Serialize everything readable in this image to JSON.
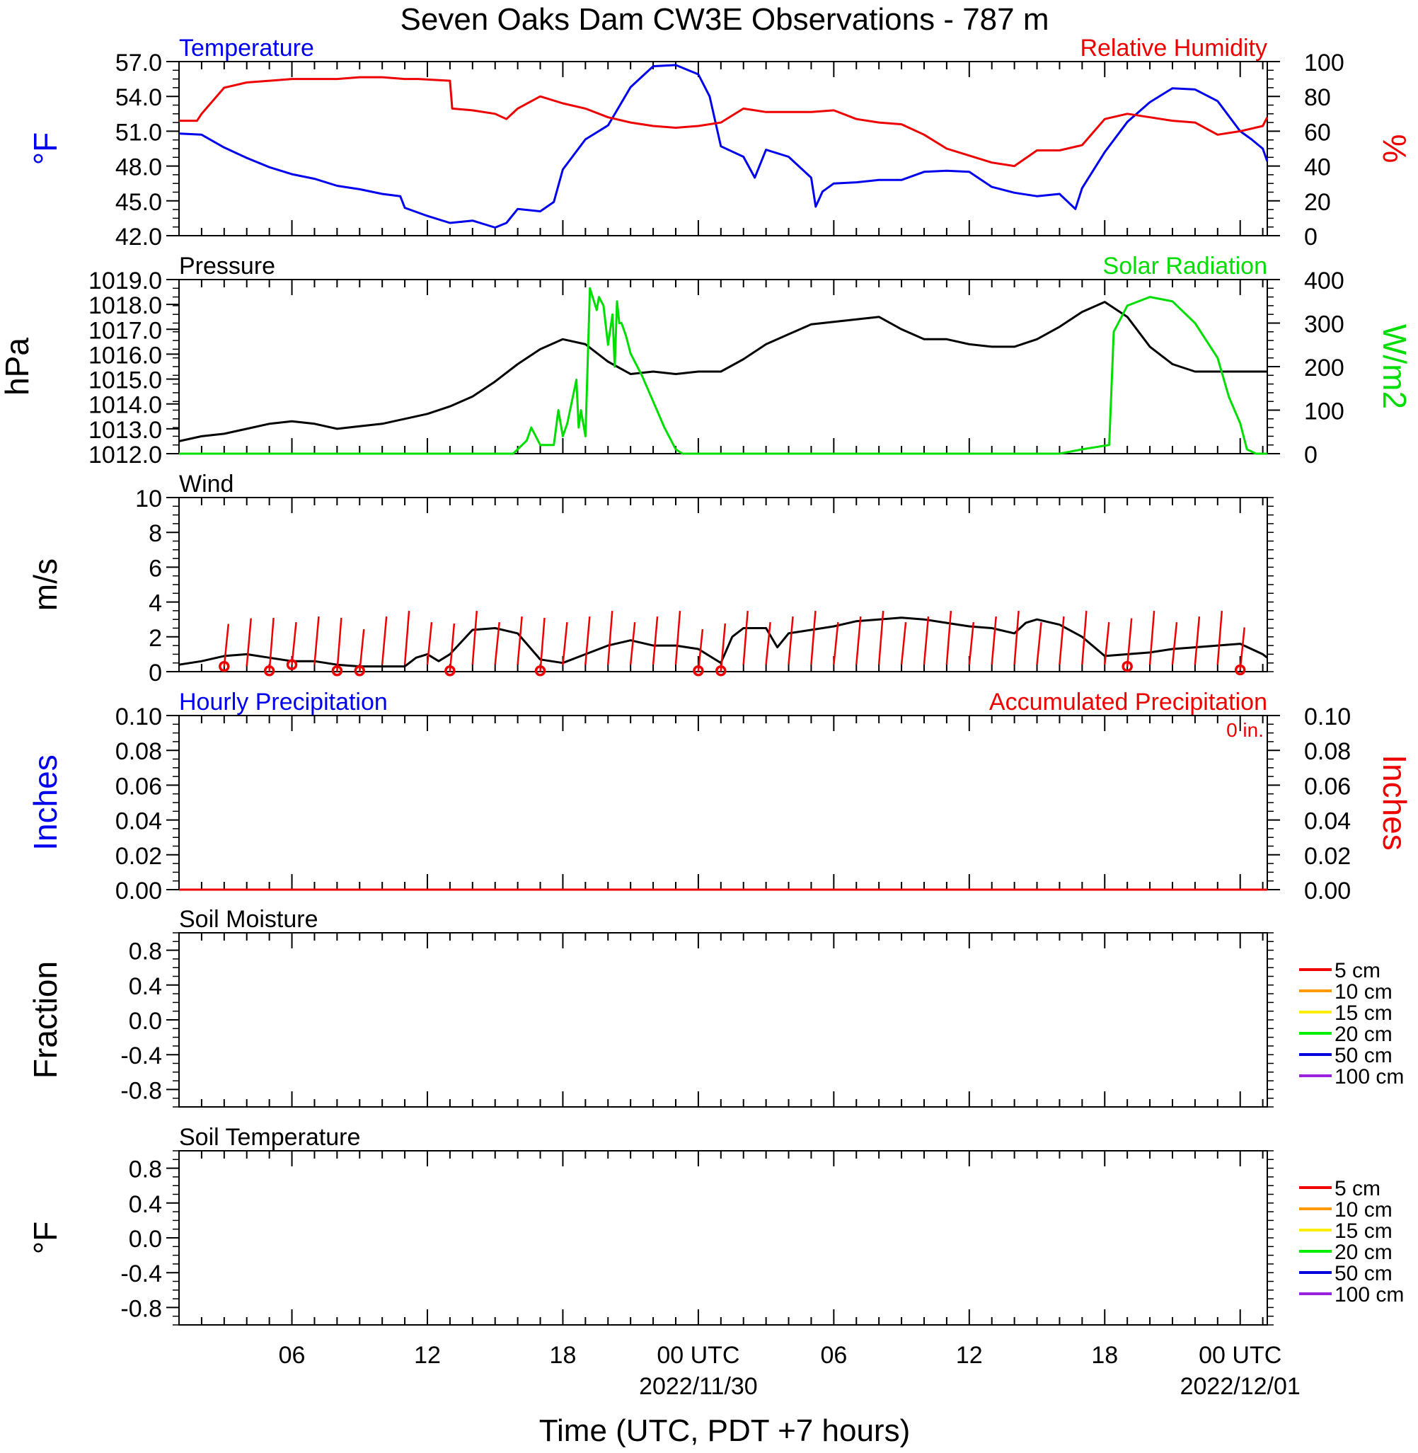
{
  "title": "Seven Oaks Dam CW3E Observations - 787 m",
  "x_axis": {
    "label": "Time (UTC, PDT +7 hours)",
    "range_hours": [
      1,
      49.2
    ],
    "ticks": [
      {
        "h": 6,
        "label": "06",
        "date": ""
      },
      {
        "h": 12,
        "label": "12",
        "date": ""
      },
      {
        "h": 18,
        "label": "18",
        "date": ""
      },
      {
        "h": 24,
        "label": "00 UTC",
        "date": "2022/11/30"
      },
      {
        "h": 30,
        "label": "06",
        "date": ""
      },
      {
        "h": 36,
        "label": "12",
        "date": ""
      },
      {
        "h": 42,
        "label": "18",
        "date": ""
      },
      {
        "h": 48,
        "label": "00 UTC",
        "date": "2022/12/01"
      }
    ]
  },
  "chart_data": [
    {
      "type": "line",
      "title_left": "Temperature",
      "title_right": "Relative Humidity",
      "ylabel_left": "°F",
      "ylabel_right": "%",
      "ylim_left": [
        42,
        57
      ],
      "ylim_right": [
        0,
        100
      ],
      "yticks_left": [
        "42.0",
        "45.0",
        "48.0",
        "51.0",
        "54.0",
        "57.0"
      ],
      "yticks_right": [
        "0",
        "20",
        "40",
        "60",
        "80",
        "100"
      ],
      "colors": {
        "left": "#0000ee",
        "right": "#ee0000"
      },
      "series": [
        {
          "name": "Temperature",
          "axis": "left",
          "color": "#0000ee",
          "x": [
            1,
            2,
            3,
            4,
            5,
            6,
            7,
            8,
            9,
            10,
            10.8,
            11,
            12,
            13,
            14,
            15,
            15.5,
            16,
            17,
            17.6,
            18,
            19,
            20,
            21,
            22,
            23,
            24,
            24.5,
            25,
            26,
            26.5,
            27,
            28,
            29,
            29.2,
            29.5,
            30,
            31,
            32,
            33,
            34,
            35,
            36,
            37,
            38,
            39,
            40,
            40.7,
            41,
            42,
            43,
            44,
            45,
            46,
            47,
            48,
            48.5,
            49,
            49.2
          ],
          "y": [
            50.8,
            50.7,
            49.6,
            48.7,
            47.9,
            47.3,
            46.9,
            46.3,
            46.0,
            45.6,
            45.4,
            44.4,
            43.7,
            43.1,
            43.3,
            42.7,
            43.1,
            44.3,
            44.1,
            44.9,
            47.7,
            50.3,
            51.5,
            54.8,
            56.6,
            56.7,
            55.9,
            54.0,
            49.7,
            48.8,
            47.0,
            49.4,
            48.8,
            47.0,
            44.5,
            45.8,
            46.5,
            46.6,
            46.8,
            46.8,
            47.5,
            47.6,
            47.5,
            46.2,
            45.7,
            45.4,
            45.6,
            44.3,
            46.1,
            49.2,
            51.8,
            53.5,
            54.7,
            54.6,
            53.6,
            51.0,
            50.3,
            49.5,
            48.4
          ]
        },
        {
          "name": "Relative Humidity",
          "axis": "right",
          "color": "#ee0000",
          "x": [
            1,
            1.8,
            2,
            3,
            4,
            5,
            6,
            7,
            8,
            9,
            10,
            11,
            11.6,
            13,
            13.1,
            14,
            15,
            15.5,
            16,
            17,
            18,
            19,
            20,
            21,
            22,
            23,
            24,
            25,
            26,
            27,
            28,
            29,
            30,
            31,
            32,
            33,
            34,
            35,
            36,
            37,
            38,
            39,
            40,
            41,
            42,
            43,
            44,
            45,
            46,
            47,
            48,
            49,
            49.2
          ],
          "y": [
            66,
            66,
            70,
            85,
            88,
            89,
            90,
            90,
            90,
            91,
            91,
            90,
            90,
            89,
            73,
            72,
            70,
            67,
            73,
            80,
            76,
            73,
            68,
            65,
            63,
            62,
            63,
            65,
            73,
            71,
            71,
            71,
            72,
            67,
            65,
            64,
            58,
            50,
            46,
            42,
            40,
            49,
            49,
            52,
            67,
            70,
            68,
            66,
            65,
            58,
            60,
            63,
            68
          ]
        }
      ]
    },
    {
      "type": "line",
      "title_left": "Pressure",
      "title_right": "Solar Radiation",
      "ylabel_left": "hPa",
      "ylabel_right": "W/m2",
      "ylim_left": [
        1012,
        1019
      ],
      "ylim_right": [
        0,
        400
      ],
      "yticks_left": [
        "1012.0",
        "1013.0",
        "1014.0",
        "1015.0",
        "1016.0",
        "1017.0",
        "1018.0",
        "1019.0"
      ],
      "yticks_right": [
        "0",
        "100",
        "200",
        "300",
        "400"
      ],
      "colors": {
        "left": "#000000",
        "right": "#00dd00"
      },
      "series": [
        {
          "name": "Pressure",
          "axis": "left",
          "color": "#000000",
          "x": [
            1,
            2,
            3,
            4,
            5,
            6,
            7,
            8,
            9,
            10,
            11,
            12,
            13,
            14,
            15,
            16,
            17,
            18,
            19,
            20,
            21,
            22,
            23,
            24,
            25,
            26,
            27,
            28,
            29,
            30,
            31,
            32,
            33,
            34,
            35,
            36,
            37,
            38,
            39,
            40,
            41,
            42,
            43,
            44,
            45,
            46,
            47,
            48,
            49.2
          ],
          "y": [
            1012.5,
            1012.7,
            1012.8,
            1013.0,
            1013.2,
            1013.3,
            1013.2,
            1013.0,
            1013.1,
            1013.2,
            1013.4,
            1013.6,
            1013.9,
            1014.3,
            1014.9,
            1015.6,
            1016.2,
            1016.6,
            1016.4,
            1015.7,
            1015.2,
            1015.3,
            1015.2,
            1015.3,
            1015.3,
            1015.8,
            1016.4,
            1016.8,
            1017.2,
            1017.3,
            1017.4,
            1017.5,
            1017.0,
            1016.6,
            1016.6,
            1016.4,
            1016.3,
            1016.3,
            1016.6,
            1017.1,
            1017.7,
            1018.1,
            1017.5,
            1016.3,
            1015.6,
            1015.3,
            1015.3,
            1015.3,
            1015.3
          ]
        },
        {
          "name": "Solar Radiation",
          "axis": "right",
          "color": "#00dd00",
          "x": [
            1,
            15.8,
            16.4,
            16.6,
            16.8,
            17,
            17.6,
            17.8,
            18,
            18.2,
            18.6,
            18.7,
            18.8,
            19.0,
            19.2,
            19.5,
            19.6,
            19.8,
            20,
            20.2,
            20.3,
            20.4,
            20.5,
            20.6,
            20.8,
            21,
            21.5,
            22,
            22.5,
            23,
            23.3,
            23.5,
            24,
            24.1,
            30,
            36,
            40,
            41,
            42.2,
            42.4,
            43,
            44,
            45,
            46,
            47,
            47.5,
            48,
            48.3,
            48.7,
            49.2
          ],
          "y": [
            0,
            0,
            30,
            60,
            40,
            20,
            20,
            100,
            40,
            70,
            170,
            60,
            100,
            40,
            380,
            330,
            360,
            340,
            250,
            320,
            200,
            350,
            300,
            300,
            270,
            230,
            180,
            120,
            60,
            10,
            0,
            0,
            0,
            0,
            0,
            0,
            0,
            10,
            20,
            280,
            340,
            360,
            350,
            300,
            220,
            130,
            70,
            10,
            0,
            0
          ]
        }
      ]
    },
    {
      "type": "line",
      "title_left": "Wind",
      "ylabel_left": "m/s",
      "ylim_left": [
        0,
        10
      ],
      "yticks_left": [
        "0",
        "2",
        "4",
        "6",
        "8",
        "10"
      ],
      "colors": {
        "speed": "#000000",
        "barb": "#ee0000"
      },
      "series": [
        {
          "name": "Wind Speed",
          "axis": "left",
          "color": "#000000",
          "x": [
            1,
            2,
            3,
            4,
            5,
            6,
            7,
            8,
            9,
            10,
            11,
            11.5,
            12,
            12.5,
            13,
            14,
            15,
            16,
            17,
            18,
            19,
            20,
            21,
            22,
            23,
            24,
            25,
            25.5,
            26,
            27,
            27.5,
            28,
            29,
            30,
            31,
            32,
            33,
            34,
            35,
            36,
            37,
            38,
            38.5,
            39,
            40,
            41,
            42,
            43,
            44,
            45,
            46,
            47,
            48,
            49,
            49.2
          ],
          "y": [
            0.4,
            0.6,
            0.9,
            1.0,
            0.8,
            0.6,
            0.6,
            0.4,
            0.3,
            0.3,
            0.3,
            0.8,
            1.0,
            0.6,
            1.0,
            2.4,
            2.5,
            2.2,
            0.7,
            0.5,
            1.0,
            1.5,
            1.8,
            1.5,
            1.5,
            1.3,
            0.5,
            2.0,
            2.5,
            2.5,
            1.4,
            2.2,
            2.4,
            2.6,
            2.9,
            3.0,
            3.1,
            3.0,
            2.8,
            2.6,
            2.5,
            2.2,
            2.8,
            3.0,
            2.7,
            2.0,
            0.9,
            1.0,
            1.1,
            1.3,
            1.4,
            1.5,
            1.6,
            1.0,
            0.8
          ]
        },
        {
          "name": "Wind Barbs",
          "axis": "left",
          "color": "#ee0000",
          "x": [
            3,
            4,
            5,
            6,
            7,
            8,
            9,
            10,
            11,
            12,
            13,
            14,
            15,
            16,
            17,
            18,
            19,
            20,
            21,
            22,
            23,
            24,
            25,
            26,
            27,
            28,
            29,
            30,
            31,
            32,
            33,
            34,
            35,
            36,
            37,
            38,
            39,
            40,
            41,
            42,
            43,
            44,
            45,
            46,
            47,
            48
          ],
          "y": [
            0.3,
            0.3,
            0,
            0.4,
            0.4,
            0,
            0,
            0.4,
            0.4,
            0.4,
            0,
            0.4,
            0.4,
            0.4,
            0,
            0.4,
            0.4,
            0.4,
            0.4,
            0.4,
            0.4,
            0,
            0,
            0.4,
            0.4,
            0.4,
            0.4,
            0.4,
            0.4,
            0.4,
            0.4,
            0.4,
            0.4,
            0.4,
            0.4,
            0.4,
            0.4,
            0.4,
            0.4,
            0.4,
            0.3,
            0.4,
            0.4,
            0.4,
            0.4,
            0.1
          ]
        },
        {
          "name": "Calm",
          "axis": "left",
          "color": "#ee0000",
          "x": [
            3,
            5,
            6,
            8,
            9,
            13,
            17,
            24,
            25,
            43,
            48
          ],
          "y": [
            0.3,
            0.05,
            0.4,
            0.05,
            0.05,
            0.05,
            0.05,
            0.05,
            0.05,
            0.3,
            0.1
          ]
        }
      ]
    },
    {
      "type": "line",
      "title_left": "Hourly Precipitation",
      "title_right": "Accumulated Precipitation",
      "annotation": "0 in.",
      "ylabel_left": "Inches",
      "ylabel_right": "Inches",
      "ylim_left": [
        0,
        0.1
      ],
      "ylim_right": [
        0,
        0.1
      ],
      "yticks_left": [
        "0.00",
        "0.02",
        "0.04",
        "0.06",
        "0.08",
        "0.10"
      ],
      "yticks_right": [
        "0.00",
        "0.02",
        "0.04",
        "0.06",
        "0.08",
        "0.10"
      ],
      "colors": {
        "left": "#0000ee",
        "right": "#ee0000"
      },
      "series": [
        {
          "name": "Accumulated Precipitation",
          "axis": "right",
          "color": "#ee0000",
          "x": [
            1,
            49.2
          ],
          "y": [
            0,
            0
          ]
        }
      ]
    },
    {
      "type": "line",
      "title_left": "Soil Moisture",
      "ylabel_left": "Fraction",
      "ylim_left": [
        -1,
        1
      ],
      "yticks_left": [
        "-0.8",
        "-0.4",
        "0.0",
        "0.4",
        "0.8"
      ],
      "legend": [
        {
          "label": "5 cm",
          "color": "#ee0000"
        },
        {
          "label": "10 cm",
          "color": "#ff9900"
        },
        {
          "label": "15 cm",
          "color": "#ffee00"
        },
        {
          "label": "20 cm",
          "color": "#00ee00"
        },
        {
          "label": "50 cm",
          "color": "#0000dd"
        },
        {
          "label": "100 cm",
          "color": "#9922dd"
        }
      ],
      "series": []
    },
    {
      "type": "line",
      "title_left": "Soil Temperature",
      "ylabel_left": "°F",
      "ylim_left": [
        -1,
        1
      ],
      "yticks_left": [
        "-0.8",
        "-0.4",
        "0.0",
        "0.4",
        "0.8"
      ],
      "legend": [
        {
          "label": "5 cm",
          "color": "#ee0000"
        },
        {
          "label": "10 cm",
          "color": "#ff9900"
        },
        {
          "label": "15 cm",
          "color": "#ffee00"
        },
        {
          "label": "20 cm",
          "color": "#00ee00"
        },
        {
          "label": "50 cm",
          "color": "#0000dd"
        },
        {
          "label": "100 cm",
          "color": "#9922dd"
        }
      ],
      "series": []
    }
  ]
}
